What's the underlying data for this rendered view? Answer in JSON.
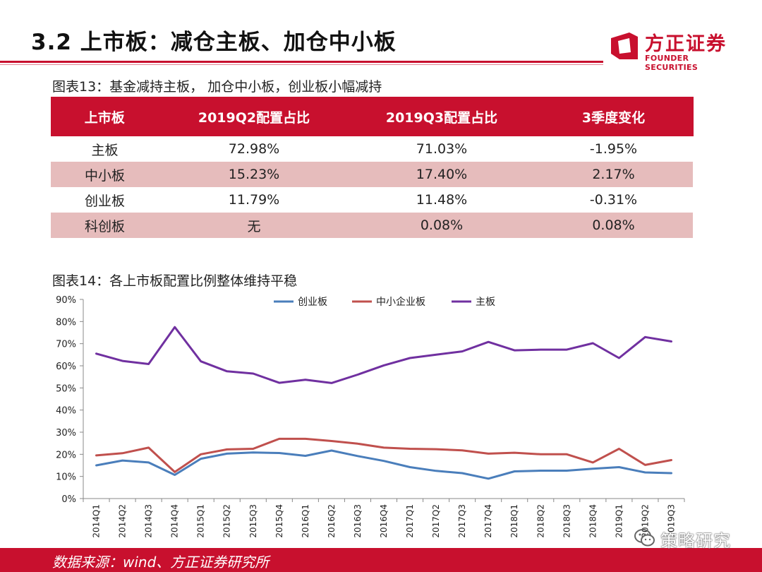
{
  "slide": {
    "title": "3.2 上市板：减仓主板、加仓中小板"
  },
  "logo": {
    "name_cn": "方正证券",
    "name_en": "FOUNDER SECURITIES",
    "color": "#c8102e"
  },
  "table_section": {
    "caption": "图表13：基金减持主板， 加仓中小板，创业板小幅减持",
    "headers": [
      "上市板",
      "2019Q2配置占比",
      "2019Q3配置占比",
      "3季度变化"
    ],
    "rows": [
      [
        "主板",
        "72.98%",
        "71.03%",
        "-1.95%"
      ],
      [
        "中小板",
        "15.23%",
        "17.40%",
        "2.17%"
      ],
      [
        "创业板",
        "11.79%",
        "11.48%",
        "-0.31%"
      ],
      [
        "科创板",
        "无",
        "0.08%",
        "0.08%"
      ]
    ],
    "header_color": "#c8102e",
    "stripe_color": "#e6bcbc"
  },
  "chart_section": {
    "caption": "图表14：各上市板配置比例整体维持平稳"
  },
  "chart_data": {
    "type": "line",
    "title": "",
    "xlabel": "",
    "ylabel": "",
    "ylim": [
      0,
      90
    ],
    "ytick_labels": [
      "0%",
      "10%",
      "20%",
      "30%",
      "40%",
      "50%",
      "60%",
      "70%",
      "80%",
      "90%"
    ],
    "legend_position": "top",
    "grid": false,
    "categories": [
      "2014Q1",
      "2014Q2",
      "2014Q3",
      "2014Q4",
      "2015Q1",
      "2015Q2",
      "2015Q3",
      "2015Q4",
      "2016Q1",
      "2016Q2",
      "2016Q3",
      "2016Q4",
      "2017Q1",
      "2017Q2",
      "2017Q3",
      "2017Q4",
      "2018Q1",
      "2018Q2",
      "2018Q3",
      "2018Q4",
      "2019Q1",
      "2019Q2",
      "2019Q3"
    ],
    "series": [
      {
        "name": "创业板",
        "color": "#4a7ebb",
        "values": [
          15,
          17.2,
          16.3,
          10.7,
          18,
          20.3,
          20.8,
          20.6,
          19.3,
          21.7,
          19.2,
          17,
          14.2,
          12.5,
          11.5,
          9,
          12.3,
          12.6,
          12.6,
          13.5,
          14.2,
          11.8,
          11.5
        ]
      },
      {
        "name": "中小企业板",
        "color": "#c0504d",
        "values": [
          19.5,
          20.5,
          23,
          12,
          20,
          22.2,
          22.5,
          27,
          27,
          26,
          24.8,
          23,
          22.5,
          22.3,
          21.8,
          20.3,
          20.7,
          20,
          20,
          16.3,
          22.5,
          15.2,
          17.4
        ]
      },
      {
        "name": "主板",
        "color": "#7030a0",
        "values": [
          65.5,
          62.2,
          60.8,
          77.5,
          62,
          57.5,
          56.5,
          52.3,
          53.7,
          52.2,
          56,
          60.2,
          63.5,
          65,
          66.5,
          70.8,
          67,
          67.3,
          67.3,
          70.2,
          63.5,
          73,
          71
        ]
      }
    ]
  },
  "footer": {
    "source": "数据来源：wind、方正证券研究所",
    "color": "#c8102e"
  },
  "watermark": {
    "text": "策略研究"
  }
}
